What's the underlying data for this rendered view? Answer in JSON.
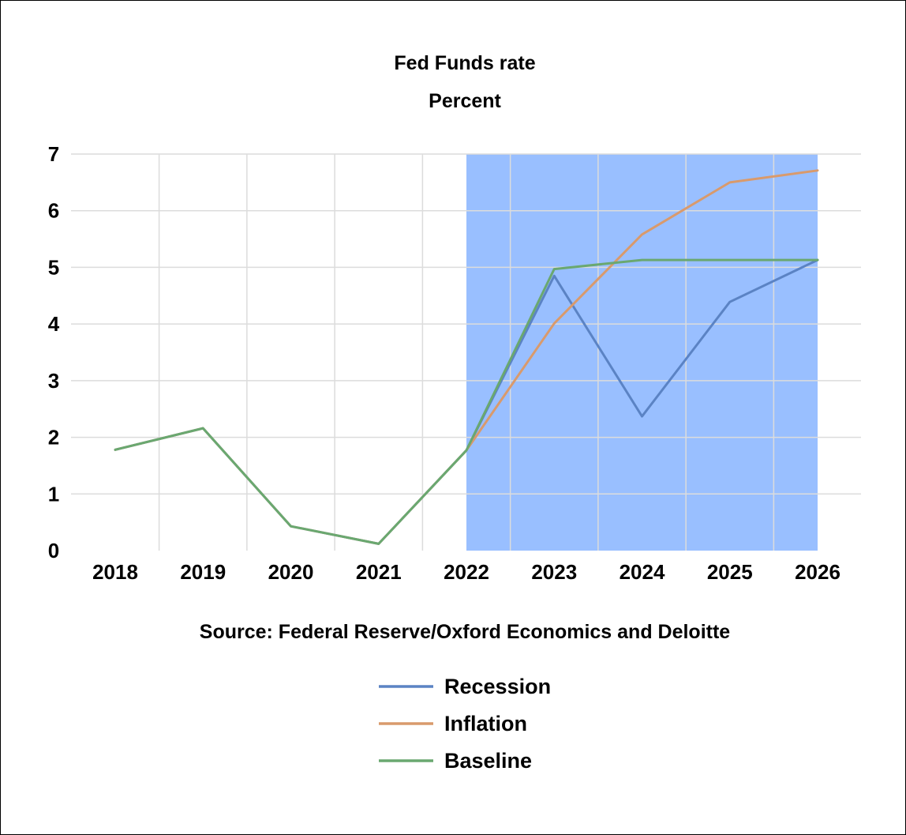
{
  "chart_data": {
    "type": "line",
    "title": "Fed Funds rate",
    "subtitle": "Percent",
    "source": "Source: Federal Reserve/Oxford Economics and Deloitte",
    "xlabel": "",
    "ylabel": "",
    "categories": [
      "2018",
      "2019",
      "2020",
      "2021",
      "2022",
      "2023",
      "2024",
      "2025",
      "2026"
    ],
    "ylim": [
      0,
      7
    ],
    "yticks": [
      "0",
      "1",
      "2",
      "3",
      "4",
      "5",
      "6",
      "7"
    ],
    "grid": true,
    "forecast_shading": {
      "from_year": 2022,
      "to_year": 2026,
      "color": "#99BFFF"
    },
    "legend_position": "bottom",
    "series": [
      {
        "name": "Recession",
        "color": "#5B83C4",
        "values": [
          1.78,
          2.16,
          0.43,
          0.12,
          1.77,
          4.85,
          2.37,
          4.39,
          5.13
        ]
      },
      {
        "name": "Inflation",
        "color": "#D99A6C",
        "values": [
          1.78,
          2.16,
          0.43,
          0.12,
          1.77,
          4.01,
          5.58,
          6.5,
          6.71
        ]
      },
      {
        "name": "Baseline",
        "color": "#6AA870",
        "values": [
          1.78,
          2.16,
          0.43,
          0.12,
          1.77,
          4.97,
          5.13,
          5.13,
          5.13
        ]
      }
    ]
  }
}
